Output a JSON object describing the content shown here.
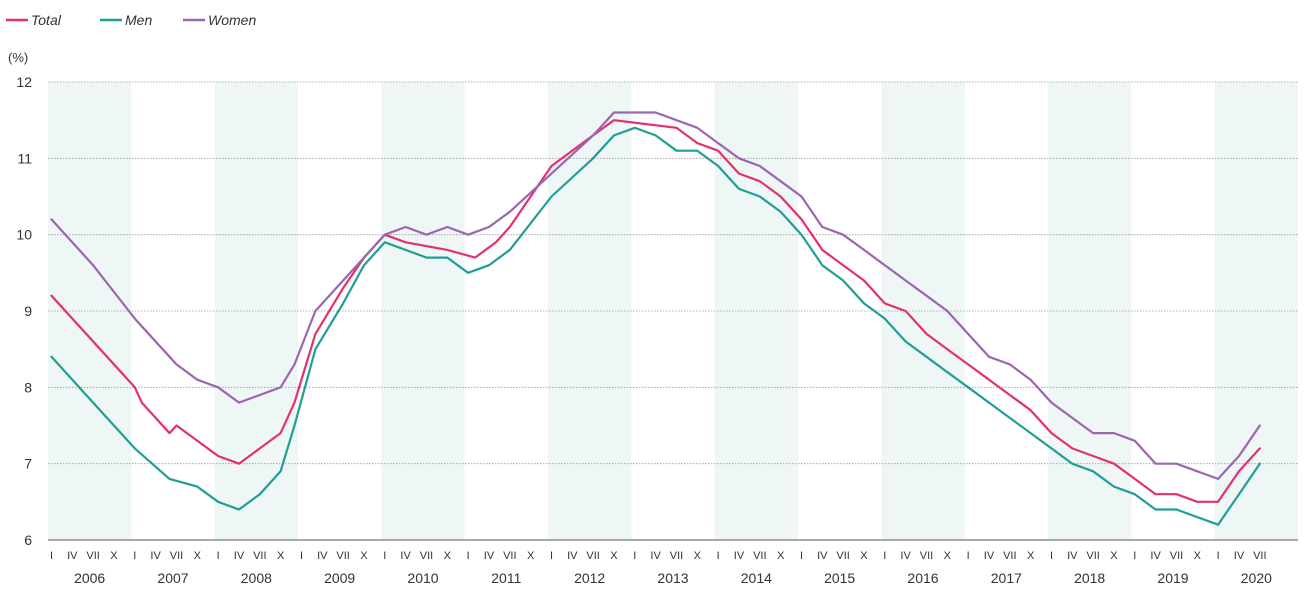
{
  "chart_data": {
    "type": "line",
    "title": "",
    "xlabel": "",
    "ylabel": "(%)",
    "ylim": [
      6,
      12
    ],
    "yticks": [
      "6",
      "7",
      "8",
      "9",
      "10",
      "11",
      "12"
    ],
    "grid": true,
    "legend_position": "top-left",
    "years": [
      "2006",
      "2007",
      "2008",
      "2009",
      "2010",
      "2011",
      "2012",
      "2013",
      "2014",
      "2015",
      "2016",
      "2017",
      "2018",
      "2019",
      "2020"
    ],
    "month_ticks": [
      "I",
      "IV",
      "VII",
      "X"
    ],
    "x_start": "2006-01",
    "x_end": "2020-07",
    "colors": {
      "total": "#e3306f",
      "men": "#1f9e96",
      "women": "#9966b0",
      "band": "#eff7f6",
      "grid": "#9a9a9a"
    },
    "series": [
      {
        "name": "Total",
        "key": "total",
        "points": [
          [
            "2006-01",
            9.2
          ],
          [
            "2007-01",
            8.0
          ],
          [
            "2007-02",
            7.8
          ],
          [
            "2007-06",
            7.4
          ],
          [
            "2007-07",
            7.5
          ],
          [
            "2007-10",
            7.3
          ],
          [
            "2008-01",
            7.1
          ],
          [
            "2008-04",
            7.0
          ],
          [
            "2008-07",
            7.2
          ],
          [
            "2008-10",
            7.4
          ],
          [
            "2008-12",
            7.8
          ],
          [
            "2009-03",
            8.7
          ],
          [
            "2009-07",
            9.3
          ],
          [
            "2009-10",
            9.7
          ],
          [
            "2010-01",
            10.0
          ],
          [
            "2010-04",
            9.9
          ],
          [
            "2010-10",
            9.8
          ],
          [
            "2011-02",
            9.7
          ],
          [
            "2011-05",
            9.9
          ],
          [
            "2011-07",
            10.1
          ],
          [
            "2012-01",
            10.9
          ],
          [
            "2012-07",
            11.3
          ],
          [
            "2012-10",
            11.5
          ],
          [
            "2013-07",
            11.4
          ],
          [
            "2013-10",
            11.2
          ],
          [
            "2014-01",
            11.1
          ],
          [
            "2014-04",
            10.8
          ],
          [
            "2014-07",
            10.7
          ],
          [
            "2014-10",
            10.5
          ],
          [
            "2015-01",
            10.2
          ],
          [
            "2015-04",
            9.8
          ],
          [
            "2015-07",
            9.6
          ],
          [
            "2015-10",
            9.4
          ],
          [
            "2016-01",
            9.1
          ],
          [
            "2016-04",
            9.0
          ],
          [
            "2016-07",
            8.7
          ],
          [
            "2016-10",
            8.5
          ],
          [
            "2017-01",
            8.3
          ],
          [
            "2017-04",
            8.1
          ],
          [
            "2017-07",
            7.9
          ],
          [
            "2017-10",
            7.7
          ],
          [
            "2018-01",
            7.4
          ],
          [
            "2018-04",
            7.2
          ],
          [
            "2018-07",
            7.1
          ],
          [
            "2018-10",
            7.0
          ],
          [
            "2019-01",
            6.8
          ],
          [
            "2019-04",
            6.6
          ],
          [
            "2019-07",
            6.6
          ],
          [
            "2019-10",
            6.5
          ],
          [
            "2020-01",
            6.5
          ],
          [
            "2020-04",
            6.9
          ],
          [
            "2020-07",
            7.2
          ]
        ]
      },
      {
        "name": "Men",
        "key": "men",
        "points": [
          [
            "2006-01",
            8.4
          ],
          [
            "2006-07",
            7.8
          ],
          [
            "2007-01",
            7.2
          ],
          [
            "2007-06",
            6.8
          ],
          [
            "2007-10",
            6.7
          ],
          [
            "2008-01",
            6.5
          ],
          [
            "2008-04",
            6.4
          ],
          [
            "2008-07",
            6.6
          ],
          [
            "2008-10",
            6.9
          ],
          [
            "2008-12",
            7.5
          ],
          [
            "2009-03",
            8.5
          ],
          [
            "2009-07",
            9.1
          ],
          [
            "2009-10",
            9.6
          ],
          [
            "2010-01",
            9.9
          ],
          [
            "2010-04",
            9.8
          ],
          [
            "2010-07",
            9.7
          ],
          [
            "2010-10",
            9.7
          ],
          [
            "2011-01",
            9.5
          ],
          [
            "2011-04",
            9.6
          ],
          [
            "2011-07",
            9.8
          ],
          [
            "2012-01",
            10.5
          ],
          [
            "2012-07",
            11.0
          ],
          [
            "2012-10",
            11.3
          ],
          [
            "2013-01",
            11.4
          ],
          [
            "2013-04",
            11.3
          ],
          [
            "2013-07",
            11.1
          ],
          [
            "2013-10",
            11.1
          ],
          [
            "2014-01",
            10.9
          ],
          [
            "2014-04",
            10.6
          ],
          [
            "2014-07",
            10.5
          ],
          [
            "2014-10",
            10.3
          ],
          [
            "2015-01",
            10.0
          ],
          [
            "2015-04",
            9.6
          ],
          [
            "2015-07",
            9.4
          ],
          [
            "2015-10",
            9.1
          ],
          [
            "2016-01",
            8.9
          ],
          [
            "2016-04",
            8.6
          ],
          [
            "2016-07",
            8.4
          ],
          [
            "2016-10",
            8.2
          ],
          [
            "2017-01",
            8.0
          ],
          [
            "2017-04",
            7.8
          ],
          [
            "2017-07",
            7.6
          ],
          [
            "2017-10",
            7.4
          ],
          [
            "2018-01",
            7.2
          ],
          [
            "2018-04",
            7.0
          ],
          [
            "2018-07",
            6.9
          ],
          [
            "2018-10",
            6.7
          ],
          [
            "2019-01",
            6.6
          ],
          [
            "2019-04",
            6.4
          ],
          [
            "2019-07",
            6.4
          ],
          [
            "2019-10",
            6.3
          ],
          [
            "2020-01",
            6.2
          ],
          [
            "2020-04",
            6.6
          ],
          [
            "2020-07",
            7.0
          ]
        ]
      },
      {
        "name": "Women",
        "key": "women",
        "points": [
          [
            "2006-01",
            10.2
          ],
          [
            "2006-07",
            9.6
          ],
          [
            "2007-01",
            8.9
          ],
          [
            "2007-04",
            8.6
          ],
          [
            "2007-07",
            8.3
          ],
          [
            "2007-10",
            8.1
          ],
          [
            "2008-01",
            8.0
          ],
          [
            "2008-04",
            7.8
          ],
          [
            "2008-07",
            7.9
          ],
          [
            "2008-10",
            8.0
          ],
          [
            "2008-12",
            8.3
          ],
          [
            "2009-03",
            9.0
          ],
          [
            "2009-07",
            9.4
          ],
          [
            "2009-10",
            9.7
          ],
          [
            "2010-01",
            10.0
          ],
          [
            "2010-04",
            10.1
          ],
          [
            "2010-07",
            10.0
          ],
          [
            "2010-10",
            10.1
          ],
          [
            "2011-01",
            10.0
          ],
          [
            "2011-04",
            10.1
          ],
          [
            "2011-07",
            10.3
          ],
          [
            "2012-01",
            10.8
          ],
          [
            "2012-07",
            11.3
          ],
          [
            "2012-10",
            11.6
          ],
          [
            "2013-01",
            11.6
          ],
          [
            "2013-04",
            11.6
          ],
          [
            "2013-07",
            11.5
          ],
          [
            "2013-10",
            11.4
          ],
          [
            "2014-01",
            11.2
          ],
          [
            "2014-04",
            11.0
          ],
          [
            "2014-07",
            10.9
          ],
          [
            "2014-10",
            10.7
          ],
          [
            "2015-01",
            10.5
          ],
          [
            "2015-04",
            10.1
          ],
          [
            "2015-07",
            10.0
          ],
          [
            "2015-10",
            9.8
          ],
          [
            "2016-01",
            9.6
          ],
          [
            "2016-04",
            9.4
          ],
          [
            "2016-07",
            9.2
          ],
          [
            "2016-10",
            9.0
          ],
          [
            "2017-01",
            8.7
          ],
          [
            "2017-04",
            8.4
          ],
          [
            "2017-07",
            8.3
          ],
          [
            "2017-10",
            8.1
          ],
          [
            "2018-01",
            7.8
          ],
          [
            "2018-04",
            7.6
          ],
          [
            "2018-07",
            7.4
          ],
          [
            "2018-10",
            7.4
          ],
          [
            "2019-01",
            7.3
          ],
          [
            "2019-04",
            7.0
          ],
          [
            "2019-07",
            7.0
          ],
          [
            "2019-10",
            6.9
          ],
          [
            "2020-01",
            6.8
          ],
          [
            "2020-04",
            7.1
          ],
          [
            "2020-07",
            7.5
          ]
        ]
      }
    ]
  }
}
